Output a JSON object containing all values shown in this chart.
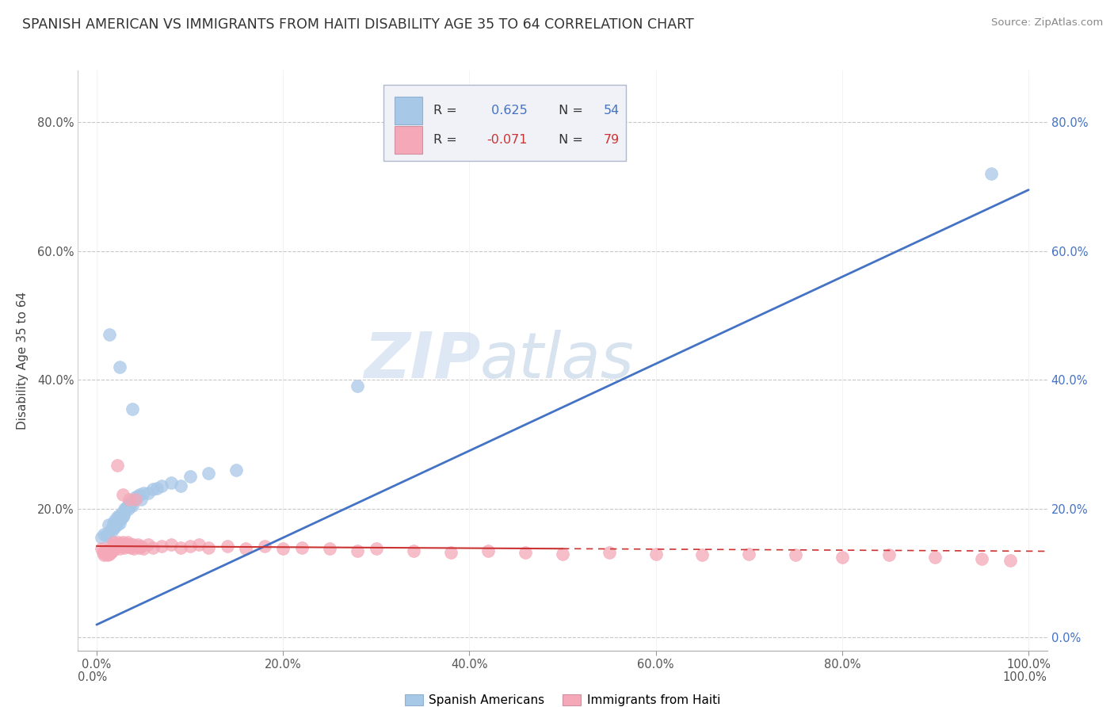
{
  "title": "SPANISH AMERICAN VS IMMIGRANTS FROM HAITI DISABILITY AGE 35 TO 64 CORRELATION CHART",
  "source": "Source: ZipAtlas.com",
  "xlabel": "",
  "ylabel": "Disability Age 35 to 64",
  "xlim": [
    -0.02,
    1.02
  ],
  "ylim": [
    -0.02,
    0.88
  ],
  "xticks": [
    0.0,
    0.2,
    0.4,
    0.6,
    0.8,
    1.0
  ],
  "xtick_labels": [
    "0.0%",
    "20.0%",
    "40.0%",
    "60.0%",
    "80.0%",
    "100.0%"
  ],
  "yticks": [
    0.0,
    0.2,
    0.4,
    0.6,
    0.8
  ],
  "ytick_labels_left": [
    "",
    "20.0%",
    "40.0%",
    "60.0%",
    "80.0%"
  ],
  "ytick_labels_right": [
    "0.0%",
    "20.0%",
    "40.0%",
    "60.0%",
    "80.0%"
  ],
  "series1_label": "Spanish Americans",
  "series2_label": "Immigrants from Haiti",
  "color1": "#a8c8e8",
  "color2": "#f4a8b8",
  "trendline1_color": "#4472c4",
  "trendline2_color": "#cc3333",
  "watermark_zip": "ZIP",
  "watermark_atlas": "atlas",
  "background_color": "#ffffff",
  "grid_color": "#c8c8c8",
  "legend_box_color": "#e8e8f0",
  "legend_border_color": "#b0b8d0",
  "blue_x": [
    0.005,
    0.008,
    0.01,
    0.012,
    0.013,
    0.015,
    0.016,
    0.017,
    0.018,
    0.019,
    0.02,
    0.02,
    0.021,
    0.022,
    0.022,
    0.023,
    0.024,
    0.025,
    0.025,
    0.026,
    0.027,
    0.028,
    0.028,
    0.029,
    0.03,
    0.03,
    0.031,
    0.032,
    0.033,
    0.034,
    0.035,
    0.036,
    0.037,
    0.038,
    0.04,
    0.042,
    0.044,
    0.046,
    0.048,
    0.05,
    0.055,
    0.06,
    0.065,
    0.07,
    0.08,
    0.09,
    0.1,
    0.12,
    0.15,
    0.014,
    0.025,
    0.038,
    0.28,
    0.96
  ],
  "blue_y": [
    0.155,
    0.16,
    0.158,
    0.162,
    0.175,
    0.168,
    0.165,
    0.172,
    0.178,
    0.17,
    0.175,
    0.182,
    0.178,
    0.175,
    0.188,
    0.18,
    0.185,
    0.19,
    0.178,
    0.185,
    0.192,
    0.188,
    0.195,
    0.19,
    0.195,
    0.2,
    0.198,
    0.202,
    0.205,
    0.2,
    0.208,
    0.205,
    0.21,
    0.205,
    0.215,
    0.218,
    0.22,
    0.222,
    0.215,
    0.225,
    0.225,
    0.23,
    0.232,
    0.235,
    0.24,
    0.235,
    0.25,
    0.255,
    0.26,
    0.47,
    0.42,
    0.355,
    0.39,
    0.72
  ],
  "pink_x": [
    0.005,
    0.007,
    0.008,
    0.009,
    0.01,
    0.011,
    0.012,
    0.013,
    0.014,
    0.015,
    0.015,
    0.016,
    0.017,
    0.018,
    0.018,
    0.019,
    0.02,
    0.021,
    0.022,
    0.023,
    0.024,
    0.025,
    0.026,
    0.027,
    0.028,
    0.029,
    0.03,
    0.031,
    0.032,
    0.033,
    0.034,
    0.035,
    0.036,
    0.037,
    0.038,
    0.039,
    0.04,
    0.042,
    0.044,
    0.046,
    0.048,
    0.05,
    0.055,
    0.06,
    0.07,
    0.08,
    0.09,
    0.1,
    0.11,
    0.12,
    0.14,
    0.16,
    0.18,
    0.2,
    0.22,
    0.25,
    0.28,
    0.3,
    0.34,
    0.38,
    0.42,
    0.46,
    0.5,
    0.55,
    0.6,
    0.65,
    0.7,
    0.75,
    0.8,
    0.85,
    0.9,
    0.95,
    0.98,
    0.022,
    0.028,
    0.035,
    0.042
  ],
  "pink_y": [
    0.138,
    0.132,
    0.128,
    0.135,
    0.13,
    0.132,
    0.128,
    0.135,
    0.13,
    0.132,
    0.142,
    0.138,
    0.135,
    0.14,
    0.148,
    0.142,
    0.138,
    0.145,
    0.142,
    0.148,
    0.145,
    0.138,
    0.145,
    0.142,
    0.148,
    0.145,
    0.14,
    0.145,
    0.142,
    0.148,
    0.145,
    0.142,
    0.145,
    0.14,
    0.142,
    0.145,
    0.138,
    0.142,
    0.145,
    0.14,
    0.142,
    0.138,
    0.145,
    0.14,
    0.142,
    0.145,
    0.14,
    0.142,
    0.145,
    0.14,
    0.142,
    0.138,
    0.142,
    0.138,
    0.14,
    0.138,
    0.135,
    0.138,
    0.135,
    0.132,
    0.135,
    0.132,
    0.13,
    0.132,
    0.13,
    0.128,
    0.13,
    0.128,
    0.125,
    0.128,
    0.125,
    0.122,
    0.12,
    0.268,
    0.222,
    0.215,
    0.215
  ],
  "trendline1_x0": 0.0,
  "trendline1_y0": 0.02,
  "trendline1_x1": 1.0,
  "trendline1_y1": 0.695,
  "trendline2_solid_x0": 0.0,
  "trendline2_solid_y0": 0.142,
  "trendline2_solid_x1": 0.5,
  "trendline2_solid_y1": 0.138,
  "trendline2_dash_x0": 0.5,
  "trendline2_dash_y0": 0.138,
  "trendline2_dash_x1": 1.02,
  "trendline2_dash_y1": 0.134
}
